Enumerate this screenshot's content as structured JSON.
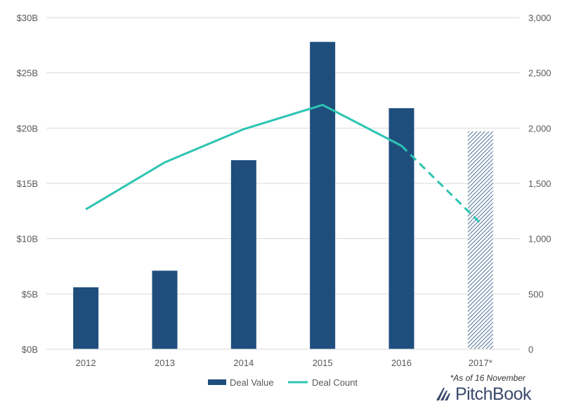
{
  "chart_data": {
    "type": "bar",
    "categories": [
      "2012",
      "2013",
      "2014",
      "2015",
      "2016",
      "2017*"
    ],
    "series": [
      {
        "name": "Deal Value",
        "kind": "bar",
        "axis": "left",
        "color": "#1f4e7d",
        "values": [
          5.6,
          7.1,
          17.1,
          27.8,
          21.8,
          19.7
        ],
        "estimated_from_index": 5
      },
      {
        "name": "Deal Count",
        "kind": "line",
        "axis": "right",
        "color": "#2cc4b3",
        "values": [
          1265,
          1690,
          1990,
          2210,
          1840,
          1140
        ],
        "estimated_from_index": 4
      }
    ],
    "left_axis": {
      "ylim": [
        0,
        30
      ],
      "ticks": [
        0,
        5,
        10,
        15,
        20,
        25,
        30
      ],
      "tick_labels": [
        "$0B",
        "$5B",
        "$10B",
        "$15B",
        "$20B",
        "$25B",
        "$30B"
      ]
    },
    "right_axis": {
      "ylim": [
        0,
        3000
      ],
      "ticks": [
        0,
        500,
        1000,
        1500,
        2000,
        2500,
        3000
      ],
      "tick_labels": [
        "0",
        "500",
        "1,000",
        "1,500",
        "2,000",
        "2,500",
        "3,000"
      ]
    },
    "grid": true,
    "legend": {
      "placement": "bottom-center",
      "entries": [
        "Deal Value",
        "Deal Count"
      ]
    },
    "footnote": "*As of 16 November"
  },
  "brand": {
    "logo_text": "PitchBook",
    "logo_color": "#3b4a6b"
  }
}
